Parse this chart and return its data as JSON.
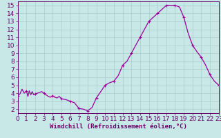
{
  "x": [
    0,
    0.25,
    0.5,
    0.75,
    1.0,
    1.17,
    1.33,
    1.5,
    1.67,
    1.83,
    2.0,
    2.25,
    2.5,
    2.75,
    3.0,
    3.25,
    3.5,
    3.75,
    4.0,
    4.25,
    4.5,
    4.75,
    5.0,
    5.5,
    6.0,
    6.5,
    7.0,
    7.5,
    8.0,
    8.5,
    9.0,
    9.5,
    10.0,
    10.5,
    11.0,
    11.5,
    12.0,
    12.5,
    13.0,
    13.5,
    14.0,
    14.5,
    15.0,
    15.5,
    16.0,
    16.5,
    17.0,
    17.5,
    18.0,
    18.5,
    19.0,
    19.5,
    20.0,
    20.5,
    21.0,
    21.5,
    22.0,
    22.5,
    23.0,
    23.5
  ],
  "y": [
    3.7,
    3.9,
    4.5,
    4.0,
    4.3,
    3.6,
    4.3,
    3.8,
    4.2,
    3.8,
    3.9,
    4.0,
    4.1,
    4.2,
    4.0,
    3.8,
    3.6,
    3.5,
    3.7,
    3.5,
    3.4,
    3.6,
    3.3,
    3.2,
    3.0,
    2.8,
    2.1,
    2.0,
    1.8,
    2.2,
    3.4,
    4.2,
    5.0,
    5.3,
    5.5,
    6.2,
    7.5,
    8.0,
    9.0,
    10.0,
    11.0,
    12.0,
    13.0,
    13.5,
    14.0,
    14.5,
    15.0,
    15.0,
    15.0,
    14.8,
    13.5,
    11.5,
    10.0,
    9.2,
    8.5,
    7.5,
    6.3,
    5.5,
    5.0,
    4.9
  ],
  "markers_x": [
    0,
    1,
    2,
    3,
    4,
    5,
    6,
    7,
    8,
    9,
    10,
    11,
    12,
    13,
    14,
    15,
    16,
    17,
    18,
    19,
    20,
    21,
    22,
    23
  ],
  "markers_y": [
    3.7,
    4.3,
    3.9,
    4.0,
    3.7,
    3.3,
    3.0,
    2.1,
    1.8,
    3.4,
    5.0,
    5.5,
    7.5,
    9.0,
    11.0,
    13.0,
    14.0,
    15.0,
    15.0,
    13.5,
    10.0,
    8.5,
    6.3,
    5.0
  ],
  "line_color": "#990099",
  "marker": "+",
  "marker_size": 3,
  "bg_color": "#c8e8e8",
  "grid_color": "#aacccc",
  "xlabel": "Windchill (Refroidissement éolien,°C)",
  "xlim": [
    0,
    23
  ],
  "ylim": [
    1.5,
    15.5
  ],
  "yticks": [
    2,
    3,
    4,
    5,
    6,
    7,
    8,
    9,
    10,
    11,
    12,
    13,
    14,
    15
  ],
  "xticks": [
    0,
    1,
    2,
    3,
    4,
    5,
    6,
    7,
    8,
    9,
    10,
    11,
    12,
    13,
    14,
    15,
    16,
    17,
    18,
    19,
    20,
    21,
    22,
    23
  ],
  "tick_label_color": "#660066",
  "line_width": 0.9,
  "font_size": 6.5
}
